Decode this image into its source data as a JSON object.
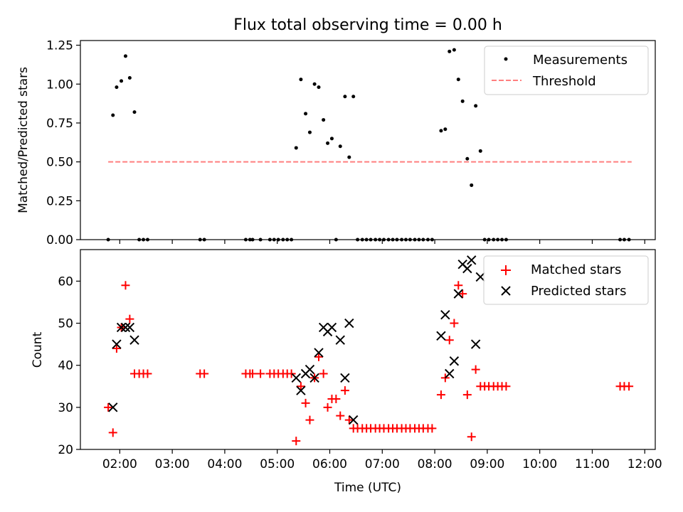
{
  "chart_data": [
    {
      "type": "scatter",
      "title": "Flux total observing time = 0.00 h",
      "xlabel": "",
      "ylabel": "Matched/Predicted stars",
      "xlim": [
        1.25,
        12.2
      ],
      "ylim": [
        0.0,
        1.28
      ],
      "xticks": [
        2,
        3,
        4,
        5,
        6,
        7,
        8,
        9,
        10,
        11,
        12
      ],
      "yticks": [
        0.0,
        0.25,
        0.5,
        0.75,
        1.0,
        1.25
      ],
      "ytick_labels": [
        "0.00",
        "0.25",
        "0.50",
        "0.75",
        "1.00",
        "1.25"
      ],
      "legend_position": "top-right",
      "series": [
        {
          "name": "Measurements",
          "style": "dot",
          "color": "#000000",
          "points": [
            [
              1.78,
              0
            ],
            [
              1.87,
              0.8
            ],
            [
              1.94,
              0.98
            ],
            [
              2.03,
              1.02
            ],
            [
              2.11,
              1.18
            ],
            [
              2.19,
              1.04
            ],
            [
              2.28,
              0.82
            ],
            [
              2.37,
              0
            ],
            [
              2.45,
              0
            ],
            [
              2.53,
              0
            ],
            [
              3.53,
              0
            ],
            [
              3.61,
              0
            ],
            [
              4.4,
              0
            ],
            [
              4.48,
              0
            ],
            [
              4.53,
              0
            ],
            [
              4.68,
              0
            ],
            [
              4.86,
              0
            ],
            [
              4.94,
              0
            ],
            [
              5.02,
              0
            ],
            [
              5.11,
              0
            ],
            [
              5.19,
              0
            ],
            [
              5.27,
              0
            ],
            [
              5.36,
              0.59
            ],
            [
              5.45,
              1.03
            ],
            [
              5.54,
              0.81
            ],
            [
              5.62,
              0.69
            ],
            [
              5.71,
              1.0
            ],
            [
              5.79,
              0.98
            ],
            [
              5.88,
              0.77
            ],
            [
              5.96,
              0.62
            ],
            [
              6.04,
              0.65
            ],
            [
              6.12,
              0
            ],
            [
              6.2,
              0.6
            ],
            [
              6.29,
              0.92
            ],
            [
              6.37,
              0.53
            ],
            [
              6.45,
              0.92
            ],
            [
              6.53,
              0
            ],
            [
              6.62,
              0
            ],
            [
              6.7,
              0
            ],
            [
              6.78,
              0
            ],
            [
              6.87,
              0
            ],
            [
              6.95,
              0
            ],
            [
              7.03,
              0
            ],
            [
              7.12,
              0
            ],
            [
              7.2,
              0
            ],
            [
              7.28,
              0
            ],
            [
              7.37,
              0
            ],
            [
              7.45,
              0
            ],
            [
              7.53,
              0
            ],
            [
              7.62,
              0
            ],
            [
              7.7,
              0
            ],
            [
              7.78,
              0
            ],
            [
              7.87,
              0
            ],
            [
              7.95,
              0
            ],
            [
              8.12,
              0.7
            ],
            [
              8.2,
              0.71
            ],
            [
              8.28,
              1.21
            ],
            [
              8.37,
              1.22
            ],
            [
              8.45,
              1.03
            ],
            [
              8.53,
              0.89
            ],
            [
              8.62,
              0.52
            ],
            [
              8.7,
              0.35
            ],
            [
              8.78,
              0.86
            ],
            [
              8.87,
              0.57
            ],
            [
              8.95,
              0
            ],
            [
              9.03,
              0
            ],
            [
              9.12,
              0
            ],
            [
              9.2,
              0
            ],
            [
              9.28,
              0
            ],
            [
              9.36,
              0
            ],
            [
              11.53,
              0
            ],
            [
              11.61,
              0
            ],
            [
              11.7,
              0
            ]
          ]
        },
        {
          "name": "Threshold",
          "style": "dashed",
          "color": "#ff7f7f",
          "points": [
            [
              1.78,
              0.5
            ],
            [
              11.75,
              0.5
            ]
          ]
        }
      ]
    },
    {
      "type": "scatter",
      "title": "",
      "xlabel": "Time (UTC)",
      "ylabel": "Count",
      "xlim": [
        1.25,
        12.2
      ],
      "ylim": [
        20,
        67.5
      ],
      "xticks": [
        2,
        3,
        4,
        5,
        6,
        7,
        8,
        9,
        10,
        11,
        12
      ],
      "xtick_labels": [
        "02:00",
        "03:00",
        "04:00",
        "05:00",
        "06:00",
        "07:00",
        "08:00",
        "09:00",
        "10:00",
        "11:00",
        "12:00"
      ],
      "yticks": [
        20,
        30,
        40,
        50,
        60
      ],
      "ytick_labels": [
        "20",
        "30",
        "40",
        "50",
        "60"
      ],
      "legend_position": "top-right",
      "series": [
        {
          "name": "Matched stars",
          "style": "plus",
          "color": "#ff0000",
          "points": [
            [
              1.78,
              30
            ],
            [
              1.87,
              24
            ],
            [
              1.94,
              44
            ],
            [
              2.03,
              49
            ],
            [
              2.11,
              59
            ],
            [
              2.19,
              51
            ],
            [
              2.28,
              38
            ],
            [
              2.37,
              38
            ],
            [
              2.45,
              38
            ],
            [
              2.53,
              38
            ],
            [
              3.53,
              38
            ],
            [
              3.61,
              38
            ],
            [
              4.4,
              38
            ],
            [
              4.48,
              38
            ],
            [
              4.53,
              38
            ],
            [
              4.68,
              38
            ],
            [
              4.86,
              38
            ],
            [
              4.94,
              38
            ],
            [
              5.02,
              38
            ],
            [
              5.11,
              38
            ],
            [
              5.19,
              38
            ],
            [
              5.27,
              38
            ],
            [
              5.36,
              22
            ],
            [
              5.45,
              35
            ],
            [
              5.54,
              31
            ],
            [
              5.62,
              27
            ],
            [
              5.71,
              37
            ],
            [
              5.79,
              42
            ],
            [
              5.88,
              38
            ],
            [
              5.96,
              30
            ],
            [
              6.04,
              32
            ],
            [
              6.12,
              32
            ],
            [
              6.2,
              28
            ],
            [
              6.29,
              34
            ],
            [
              6.37,
              27
            ],
            [
              6.45,
              25
            ],
            [
              6.53,
              25
            ],
            [
              6.62,
              25
            ],
            [
              6.7,
              25
            ],
            [
              6.78,
              25
            ],
            [
              6.87,
              25
            ],
            [
              6.95,
              25
            ],
            [
              7.03,
              25
            ],
            [
              7.12,
              25
            ],
            [
              7.2,
              25
            ],
            [
              7.28,
              25
            ],
            [
              7.37,
              25
            ],
            [
              7.45,
              25
            ],
            [
              7.53,
              25
            ],
            [
              7.62,
              25
            ],
            [
              7.7,
              25
            ],
            [
              7.78,
              25
            ],
            [
              7.87,
              25
            ],
            [
              7.95,
              25
            ],
            [
              8.12,
              33
            ],
            [
              8.2,
              37
            ],
            [
              8.28,
              46
            ],
            [
              8.37,
              50
            ],
            [
              8.45,
              59
            ],
            [
              8.53,
              57
            ],
            [
              8.62,
              33
            ],
            [
              8.7,
              23
            ],
            [
              8.78,
              39
            ],
            [
              8.87,
              35
            ],
            [
              8.95,
              35
            ],
            [
              9.03,
              35
            ],
            [
              9.12,
              35
            ],
            [
              9.2,
              35
            ],
            [
              9.28,
              35
            ],
            [
              9.36,
              35
            ],
            [
              11.53,
              35
            ],
            [
              11.61,
              35
            ],
            [
              11.7,
              35
            ]
          ]
        },
        {
          "name": "Predicted stars",
          "style": "x",
          "color": "#000000",
          "points": [
            [
              1.87,
              30
            ],
            [
              1.94,
              45
            ],
            [
              2.03,
              49
            ],
            [
              2.11,
              49
            ],
            [
              2.19,
              49
            ],
            [
              2.28,
              46
            ],
            [
              5.36,
              37
            ],
            [
              5.45,
              34
            ],
            [
              5.54,
              38
            ],
            [
              5.62,
              39
            ],
            [
              5.71,
              37
            ],
            [
              5.79,
              43
            ],
            [
              5.88,
              49
            ],
            [
              5.96,
              48
            ],
            [
              6.04,
              49
            ],
            [
              6.2,
              46
            ],
            [
              6.29,
              37
            ],
            [
              6.37,
              50
            ],
            [
              6.45,
              27
            ],
            [
              8.12,
              47
            ],
            [
              8.2,
              52
            ],
            [
              8.28,
              38
            ],
            [
              8.37,
              41
            ],
            [
              8.45,
              57
            ],
            [
              8.53,
              64
            ],
            [
              8.62,
              63
            ],
            [
              8.7,
              65
            ],
            [
              8.78,
              45
            ],
            [
              8.87,
              61
            ]
          ]
        }
      ]
    }
  ]
}
